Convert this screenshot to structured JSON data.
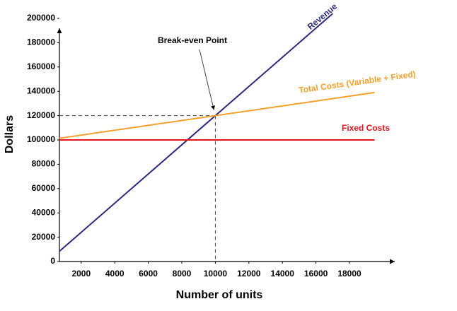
{
  "chart_data": {
    "type": "line",
    "x_label": "Number of units",
    "y_label": "Dollars",
    "xlim": [
      700,
      20700
    ],
    "ylim": [
      0,
      200000
    ],
    "xticks": [
      2000,
      4000,
      6000,
      8000,
      10000,
      12000,
      14000,
      16000,
      18000
    ],
    "yticks": [
      0,
      20000,
      40000,
      60000,
      80000,
      100000,
      120000,
      140000,
      160000,
      180000,
      200000
    ],
    "grid": false,
    "series": [
      {
        "name": "Revenue",
        "color": "#2b2a7c",
        "x": [
          700,
          17000
        ],
        "values": [
          8400,
          204000
        ]
      },
      {
        "name": "Total Costs (Variable + Fixed)",
        "color": "#f5a02a",
        "x": [
          700,
          19500
        ],
        "values": [
          101400,
          139000
        ]
      },
      {
        "name": "Fixed Costs",
        "color": "#e8141c",
        "x": [
          700,
          19500
        ],
        "values": [
          100000,
          100000
        ]
      }
    ],
    "annotation": {
      "text": "Break-even Point",
      "x": 10000,
      "y": 120000
    }
  }
}
